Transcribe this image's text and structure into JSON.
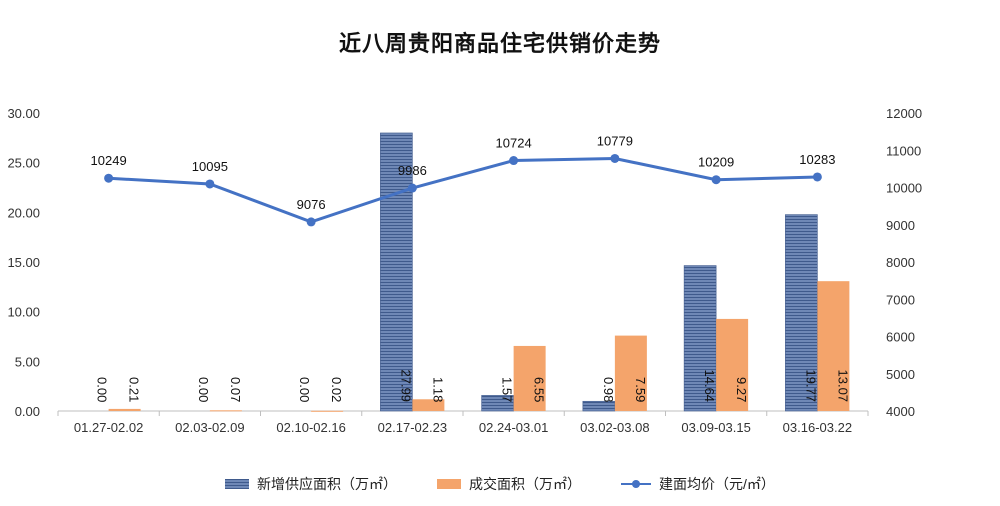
{
  "chart_data": {
    "type": "bar+line",
    "title": "近八周贵阳商品住宅供销价走势",
    "categories": [
      "01.27-02.02",
      "02.03-02.09",
      "02.10-02.16",
      "02.17-02.23",
      "02.24-03.01",
      "03.02-03.08",
      "03.09-03.15",
      "03.16-03.22"
    ],
    "series": [
      {
        "name": "新增供应面积（万㎡）",
        "type": "bar",
        "axis": "left",
        "color": "#4a6aa5",
        "values": [
          0.0,
          0.0,
          0.0,
          27.99,
          1.57,
          0.98,
          14.64,
          19.77
        ],
        "labels": [
          "0.00",
          "0.00",
          "0.00",
          "27.99",
          "1.57",
          "0.98",
          "14.64",
          "19.77"
        ]
      },
      {
        "name": "成交面积（万㎡）",
        "type": "bar",
        "axis": "left",
        "color": "#f4a46b",
        "values": [
          0.21,
          0.07,
          0.02,
          1.18,
          6.55,
          7.59,
          9.27,
          13.07
        ],
        "labels": [
          "0.21",
          "0.07",
          "0.02",
          "1.18",
          "6.55",
          "7.59",
          "9.27",
          "13.07"
        ]
      },
      {
        "name": "建面均价（元/㎡）",
        "type": "line",
        "axis": "right",
        "color": "#4472c4",
        "values": [
          10249,
          10095,
          9076,
          9986,
          10724,
          10779,
          10209,
          10283
        ],
        "labels": [
          "10249",
          "10095",
          "9076",
          "9986",
          "10724",
          "10779",
          "10209",
          "10283"
        ]
      }
    ],
    "y_left": {
      "min": 0,
      "max": 30,
      "ticks": [
        "0.00",
        "5.00",
        "10.00",
        "15.00",
        "20.00",
        "25.00",
        "30.00"
      ]
    },
    "y_right": {
      "min": 4000,
      "max": 12000,
      "ticks": [
        "4000",
        "5000",
        "6000",
        "7000",
        "8000",
        "9000",
        "10000",
        "11000",
        "12000"
      ]
    },
    "legend_position": "bottom"
  },
  "legend": {
    "supply": "新增供应面积（万㎡）",
    "deal": "成交面积（万㎡）",
    "price": "建面均价（元/㎡）"
  }
}
